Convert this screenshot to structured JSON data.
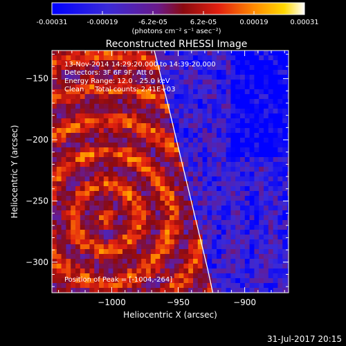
{
  "chart_data": {
    "type": "heatmap",
    "title": "Reconstructed RHESSI Image",
    "xlabel": "Heliocentric X (arcsec)",
    "ylabel": "Heliocentric Y (arcsec)",
    "xlim": [
      -1045,
      -867
    ],
    "ylim": [
      -325,
      -127
    ],
    "x_ticks": [
      -1000,
      -950,
      -900
    ],
    "y_ticks": [
      -150,
      -200,
      -250,
      -300
    ],
    "x_tick_labels": [
      "−1000",
      "−950",
      "−900"
    ],
    "y_tick_labels": [
      "−150",
      "−200",
      "−250",
      "−300"
    ],
    "colorbar": {
      "ticks": [
        "-0.00031",
        "-0.00019",
        "-6.2e-05",
        "6.2e-05",
        "0.00019",
        "0.00031"
      ],
      "units_label": "(photons cm⁻² s⁻¹ asec⁻²)",
      "range": [
        -0.00031,
        0.00031
      ]
    },
    "annotations": [
      "13-Nov-2014 14:29:20.000 to 14:39:20.000",
      "Detectors: 3F 6F 9F, Att 0",
      "Energy Range: 12.0 - 25.0 keV",
      "Clean     Total counts: 2.41E+03"
    ],
    "peak_label": "Position of Peak = [-1004,-264]",
    "peak_position": [
      -1004,
      -264
    ],
    "limb_curve": [
      [
        -968,
        -127
      ],
      [
        -958,
        -170
      ],
      [
        -948,
        -215
      ],
      [
        -938,
        -260
      ],
      [
        -928,
        -305
      ],
      [
        -924,
        -325
      ]
    ]
  },
  "footer": {
    "date_label": "31-Jul-2017 20:15"
  },
  "colors": {
    "background": "#000000",
    "text": "#ffffff"
  }
}
